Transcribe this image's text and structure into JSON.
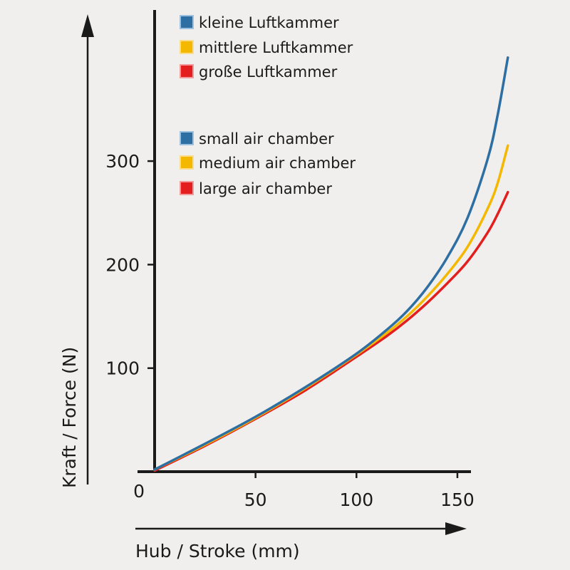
{
  "chart_data": {
    "type": "line",
    "xlabel": "Hub / Stroke (mm)",
    "ylabel": "Kraft / Force (N)",
    "xlim": [
      0,
      155
    ],
    "ylim": [
      0,
      350
    ],
    "x_ticks": [
      50,
      100,
      150
    ],
    "y_ticks": [
      100,
      200,
      300
    ],
    "origin_label": "0",
    "grid": false,
    "legend_position": "top-left",
    "legend_de": [
      "kleine Luftkammer",
      "mittlere Luftkammer",
      "große Luftkammer"
    ],
    "legend_en": [
      "small air chamber",
      "medium air chamber",
      "large air chamber"
    ],
    "series": [
      {
        "name": "kleine Luftkammer / small air chamber",
        "color": "#2d6ea3",
        "x": [
          0,
          25,
          50,
          75,
          100,
          115,
          125,
          135,
          145,
          155,
          165,
          170,
          175
        ],
        "y": [
          2,
          27,
          53,
          82,
          114,
          137,
          155,
          178,
          207,
          245,
          302,
          345,
          400
        ]
      },
      {
        "name": "mittlere Luftkammer / medium air chamber",
        "color": "#f5b800",
        "x": [
          0,
          25,
          50,
          75,
          100,
          115,
          125,
          135,
          145,
          155,
          165,
          170,
          175
        ],
        "y": [
          2,
          26,
          52,
          81,
          113,
          134,
          150,
          169,
          191,
          217,
          254,
          279,
          315
        ]
      },
      {
        "name": "große Luftkammer / large air chamber",
        "color": "#e31e1e",
        "x": [
          0,
          25,
          50,
          75,
          100,
          115,
          125,
          135,
          145,
          155,
          165,
          170,
          175
        ],
        "y": [
          1,
          25,
          51,
          79,
          111,
          131,
          146,
          163,
          182,
          203,
          231,
          249,
          270
        ]
      }
    ]
  }
}
